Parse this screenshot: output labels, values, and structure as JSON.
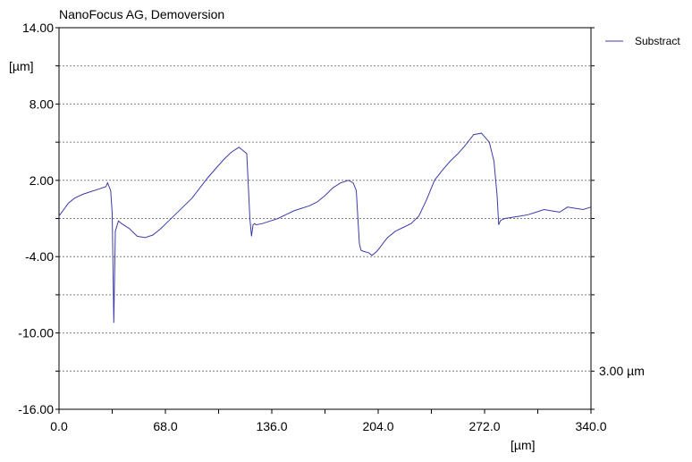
{
  "header": {
    "title": "NanoFocus AG, Demoversion"
  },
  "colors": {
    "series": "#3c3ca8",
    "grid": "#808080",
    "axis": "#000000"
  },
  "chart_data": {
    "type": "line",
    "title": "NanoFocus AG, Demoversion",
    "xlabel": "[µm]",
    "ylabel": "[µm]",
    "xlim": [
      0,
      340
    ],
    "ylim": [
      -16,
      14
    ],
    "xticks": [
      "0.0",
      "68.0",
      "136.0",
      "204.0",
      "272.0",
      "340.0"
    ],
    "yticks": [
      "14.00",
      "8.00",
      "2.00",
      "-4.00",
      "-10.00",
      "-16.00"
    ],
    "grid": true,
    "legend": {
      "position": "top-right",
      "entries": [
        "Substract"
      ]
    },
    "annotation": "3.00 µm",
    "series": [
      {
        "name": "Substract",
        "x": [
          0,
          3,
          6,
          10,
          15,
          20,
          25,
          30,
          31,
          33,
          34,
          35,
          36,
          38,
          40,
          45,
          50,
          55,
          60,
          65,
          70,
          75,
          80,
          85,
          90,
          95,
          100,
          105,
          110,
          115,
          120,
          122,
          123,
          124,
          125,
          126,
          130,
          135,
          140,
          145,
          150,
          155,
          160,
          165,
          170,
          175,
          180,
          185,
          188,
          190,
          191,
          192,
          193,
          195,
          198,
          200,
          203,
          205,
          208,
          210,
          215,
          220,
          225,
          230,
          235,
          240,
          245,
          250,
          255,
          260,
          265,
          270,
          275,
          278,
          280,
          281,
          282,
          283,
          285,
          290,
          295,
          300,
          305,
          310,
          315,
          320,
          325,
          330,
          335,
          340
        ],
        "y": [
          -0.8,
          -0.3,
          0.2,
          0.6,
          0.9,
          1.1,
          1.3,
          1.5,
          1.8,
          1.2,
          -0.6,
          -9.2,
          -2.0,
          -1.2,
          -1.4,
          -1.8,
          -2.4,
          -2.5,
          -2.3,
          -1.8,
          -1.2,
          -0.6,
          0.0,
          0.6,
          1.4,
          2.2,
          2.9,
          3.6,
          4.2,
          4.6,
          4.1,
          -1.0,
          -2.4,
          -1.5,
          -1.4,
          -1.5,
          -1.4,
          -1.2,
          -1.0,
          -0.7,
          -0.4,
          -0.2,
          0.0,
          0.3,
          0.8,
          1.4,
          1.8,
          2.0,
          1.8,
          1.2,
          -1.0,
          -3.0,
          -3.5,
          -3.6,
          -3.7,
          -3.9,
          -3.6,
          -3.3,
          -2.8,
          -2.5,
          -2.0,
          -1.7,
          -1.4,
          -0.8,
          0.5,
          2.0,
          2.8,
          3.5,
          4.1,
          4.8,
          5.6,
          5.7,
          5.0,
          3.5,
          0.8,
          -1.5,
          -1.2,
          -1.1,
          -1.0,
          -0.9,
          -0.8,
          -0.7,
          -0.5,
          -0.3,
          -0.4,
          -0.5,
          -0.1,
          -0.2,
          -0.3,
          -0.1
        ]
      }
    ]
  }
}
